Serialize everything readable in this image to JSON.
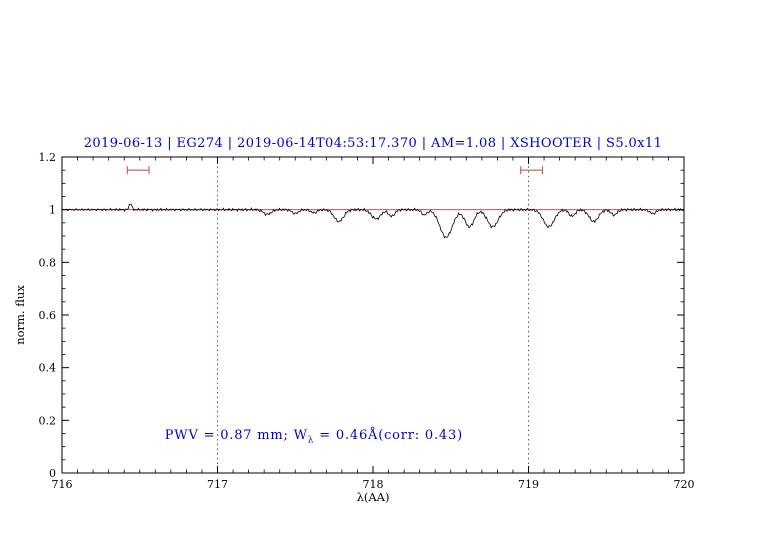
{
  "chart_data": {
    "type": "line",
    "title": "2019-06-13 | EG274 | 2019-06-14T04:53:17.370 | AM=1.08 | XSHOOTER | S5.0x11",
    "xlabel": "λ(AA)",
    "ylabel": "norm. flux",
    "xlim": [
      716,
      720
    ],
    "ylim": [
      0,
      1.2
    ],
    "grid": false,
    "legend": "none",
    "xticks": {
      "values": [
        716,
        717,
        718,
        719,
        720
      ],
      "labels": [
        "716",
        "717",
        "718",
        "719",
        "720"
      ],
      "minor_step": 0.1
    },
    "yticks": {
      "values": [
        0,
        0.2,
        0.4,
        0.6,
        0.8,
        1,
        1.2
      ],
      "labels": [
        "0",
        "0.2",
        "0.4",
        "0.6",
        "0.8",
        "1",
        "1.2"
      ],
      "minor_step": 0.05
    },
    "colors": {
      "title": "#0000cc",
      "annotation": "#0000cc",
      "spectrum": "#000000",
      "continuum": "#cc3333",
      "vline": "#334499",
      "marker": "#cc5555",
      "axis": "#000000"
    },
    "vlines": [
      717,
      719
    ],
    "continuum_level": 1.0,
    "range_markers": [
      {
        "x1": 716.42,
        "x2": 716.56,
        "y": 1.15
      },
      {
        "x1": 718.95,
        "x2": 719.09,
        "y": 1.15
      }
    ],
    "annotation": {
      "prefix": "PWV = 0.87 mm; W",
      "sub": "λ",
      "suffix": " = 0.46Å(corr: 0.43)"
    },
    "spectrum": {
      "continuum": 1.0,
      "noise_amplitude": 0.0045,
      "sampling_step": 0.006,
      "absorption_lines": [
        {
          "center": 716.44,
          "depth": -0.025,
          "sigma": 0.008
        },
        {
          "center": 717.32,
          "depth": 0.018,
          "sigma": 0.025
        },
        {
          "center": 717.5,
          "depth": 0.015,
          "sigma": 0.02
        },
        {
          "center": 717.62,
          "depth": 0.012,
          "sigma": 0.02
        },
        {
          "center": 717.78,
          "depth": 0.045,
          "sigma": 0.03
        },
        {
          "center": 718.02,
          "depth": 0.035,
          "sigma": 0.03
        },
        {
          "center": 718.12,
          "depth": 0.025,
          "sigma": 0.02
        },
        {
          "center": 718.33,
          "depth": 0.02,
          "sigma": 0.018
        },
        {
          "center": 718.47,
          "depth": 0.105,
          "sigma": 0.04
        },
        {
          "center": 718.62,
          "depth": 0.065,
          "sigma": 0.03
        },
        {
          "center": 718.77,
          "depth": 0.065,
          "sigma": 0.035
        },
        {
          "center": 719.13,
          "depth": 0.065,
          "sigma": 0.035
        },
        {
          "center": 719.28,
          "depth": 0.025,
          "sigma": 0.02
        },
        {
          "center": 719.42,
          "depth": 0.045,
          "sigma": 0.03
        },
        {
          "center": 719.55,
          "depth": 0.02,
          "sigma": 0.02
        },
        {
          "center": 719.8,
          "depth": 0.015,
          "sigma": 0.02
        }
      ]
    }
  }
}
